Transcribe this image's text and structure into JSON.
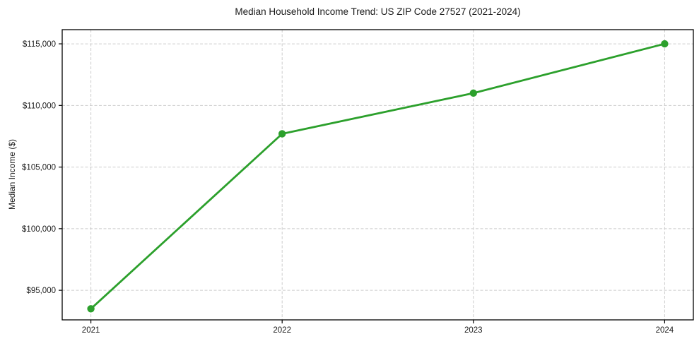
{
  "chart_data": {
    "type": "line",
    "title": "Median Household Income Trend: US ZIP Code 27527 (2021-2024)",
    "xlabel": "",
    "ylabel": "Median Income ($)",
    "categories": [
      "2021",
      "2022",
      "2023",
      "2024"
    ],
    "series": [
      {
        "name": "Median Income",
        "values": [
          93500,
          107700,
          111000,
          115000
        ],
        "color": "#2ca02c",
        "marker": "circle"
      }
    ],
    "ylim": [
      92600,
      116150
    ],
    "y_ticks": [
      {
        "value": 95000,
        "label": "$95,000"
      },
      {
        "value": 100000,
        "label": "$100,000"
      },
      {
        "value": 105000,
        "label": "$105,000"
      },
      {
        "value": 110000,
        "label": "$110,000"
      },
      {
        "value": 115000,
        "label": "$115,000"
      }
    ],
    "grid": {
      "style": "dashed",
      "color": "#cccccc",
      "x": true,
      "y": true
    },
    "legend": "none",
    "background": "#ffffff",
    "spine_color": "#000000"
  }
}
